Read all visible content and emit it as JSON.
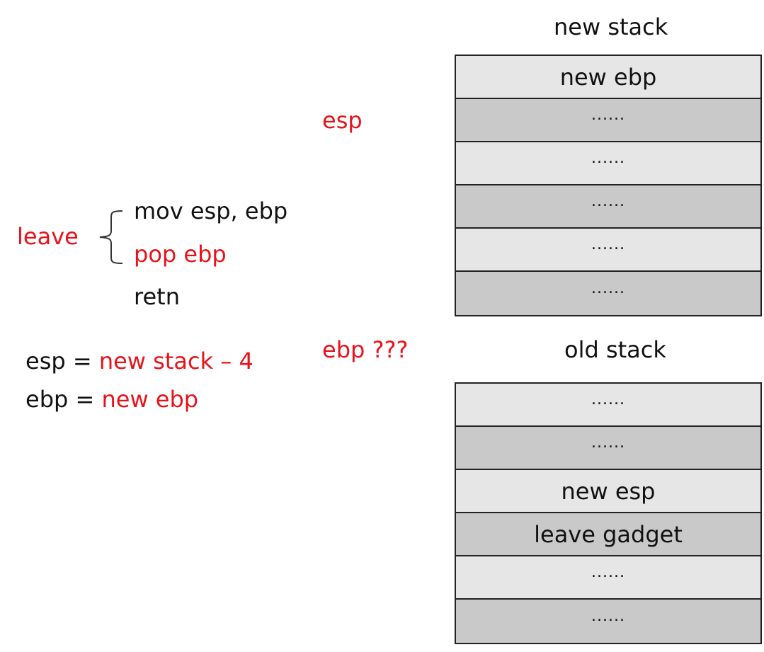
{
  "new_stack": {
    "title": "new stack",
    "rows": [
      {
        "label": "new ebp",
        "shade": "light"
      },
      {
        "label": "......",
        "shade": "dark"
      },
      {
        "label": "......",
        "shade": "light"
      },
      {
        "label": "......",
        "shade": "dark"
      },
      {
        "label": "......",
        "shade": "light"
      },
      {
        "label": "......",
        "shade": "dark"
      }
    ]
  },
  "old_stack": {
    "title": "old stack",
    "rows": [
      {
        "label": "......",
        "shade": "light"
      },
      {
        "label": "......",
        "shade": "dark"
      },
      {
        "label": "new esp",
        "shade": "light"
      },
      {
        "label": "leave gadget",
        "shade": "dark"
      },
      {
        "label": "......",
        "shade": "light"
      },
      {
        "label": "......",
        "shade": "dark"
      }
    ]
  },
  "pointers": {
    "esp": "esp",
    "ebp": "ebp ???"
  },
  "leave": {
    "label": "leave",
    "instr_1": "mov esp, ebp",
    "instr_2": "pop ebp",
    "instr_3": "retn"
  },
  "result": {
    "esp_lhs": "esp = ",
    "esp_rhs": "new stack – 4",
    "ebp_lhs": "ebp = ",
    "ebp_rhs": "new ebp"
  },
  "colors": {
    "accent_red": "#e8121a",
    "cell_light": "#e6e6e6",
    "cell_dark": "#c9c9c9"
  }
}
